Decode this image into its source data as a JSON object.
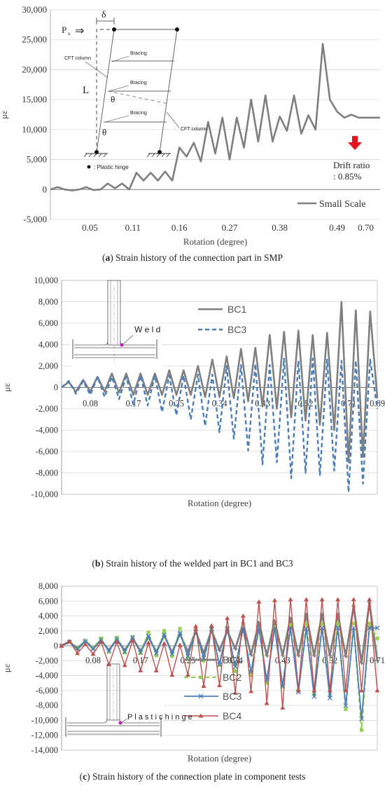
{
  "chart_data": [
    {
      "type": "line",
      "caption_label": "a",
      "caption": "Strain history of the connection part in SMP",
      "xlabel": "Rotation (degree)",
      "ylabel": "με",
      "ylim": [
        -5000,
        30000
      ],
      "yticks": [
        -5000,
        0,
        5000,
        10000,
        15000,
        20000,
        25000,
        30000
      ],
      "ytick_labels": [
        "-5,000",
        "0",
        "5,000",
        "10,000",
        "15,000",
        "20,000",
        "25,000",
        "30,000"
      ],
      "xlim": [
        0,
        46
      ],
      "xtick_labels": [
        "0.05",
        "0.11",
        "0.16",
        "0.27",
        "0.38",
        "0.49",
        "0.70"
      ],
      "xtick_positions": [
        5.5,
        11.5,
        18,
        25,
        32,
        40,
        44
      ],
      "grid": "horizontal",
      "legend_position": "bottom-right",
      "series": [
        {
          "name": "Small Scale",
          "color": "#7f7f7f",
          "style": "solid",
          "x": [
            0,
            1,
            2,
            3,
            4,
            5,
            6,
            7,
            8,
            9,
            10,
            11,
            12,
            13,
            14,
            15,
            16,
            17,
            18,
            19,
            20,
            21,
            22,
            23,
            24,
            25,
            26,
            27,
            28,
            29,
            30,
            31,
            32,
            33,
            34,
            35,
            36,
            37,
            38,
            39,
            40,
            41,
            42,
            43,
            44,
            45,
            46
          ],
          "values": [
            0,
            400,
            0,
            -150,
            0,
            400,
            -100,
            0,
            1000,
            200,
            1000,
            0,
            2800,
            1500,
            2800,
            1500,
            3000,
            1500,
            7000,
            5500,
            7800,
            4700,
            11300,
            6000,
            12000,
            5000,
            12000,
            7000,
            15000,
            8000,
            15700,
            8000,
            12200,
            9800,
            15700,
            9300,
            12400,
            10000,
            24300,
            15000,
            13000,
            12000,
            12500,
            12000,
            12000,
            12000,
            12000
          ]
        }
      ],
      "annotation": {
        "lines": [
          "Drift ratio",
          ": 0.85%"
        ],
        "arrow_color": "#e8121c"
      },
      "diagram": {
        "load": "P",
        "load_subscript": "u",
        "arrow": "⇒",
        "delta": "δ",
        "length": "L",
        "theta": "θ",
        "labels": [
          "Bracing",
          "Bracing",
          "Bracing",
          "CFT column",
          "CFT column"
        ],
        "hinge_legend": ": Plastic hinge"
      }
    },
    {
      "type": "line",
      "caption_label": "b",
      "caption": "Strain history of the welded part in BC1 and BC3",
      "xlabel": "Rotation (degree)",
      "ylabel": "με",
      "ylim": [
        -10000,
        10000
      ],
      "yticks": [
        -10000,
        -8000,
        -6000,
        -4000,
        -2000,
        0,
        2000,
        4000,
        6000,
        8000,
        10000
      ],
      "ytick_labels": [
        "-10,000",
        "-8,000",
        "-6,000",
        "-4,000",
        "-2,000",
        "0",
        "2,000",
        "4,000",
        "6,000",
        "8,000",
        "10,000"
      ],
      "xlim": [
        0,
        22
      ],
      "xtick_labels": [
        "0.08",
        "0.17",
        "0.25",
        "0.34",
        "0.43",
        "0.52",
        "0.71",
        "0.89"
      ],
      "xtick_positions": [
        2,
        5,
        8,
        11,
        14,
        17,
        20,
        22
      ],
      "grid": "horizontal",
      "legend_position": "top",
      "weld_label": "W e l d",
      "series": [
        {
          "name": "BC1",
          "color": "#7f7f7f",
          "style": "solid",
          "x": [
            0,
            0.5,
            1,
            1.5,
            2,
            2.5,
            3,
            3.5,
            4,
            4.5,
            5,
            5.5,
            6,
            6.5,
            7,
            7.5,
            8,
            8.5,
            9,
            9.5,
            10,
            10.5,
            11,
            11.5,
            12,
            12.5,
            13,
            13.5,
            14,
            14.5,
            15,
            15.5,
            16,
            16.5,
            17,
            17.5,
            18,
            18.5,
            19,
            19.5,
            20,
            20.5,
            21,
            21.5,
            22
          ],
          "values": [
            0,
            500,
            -400,
            700,
            -400,
            1000,
            -400,
            1300,
            -500,
            1300,
            -700,
            1300,
            -700,
            1300,
            -700,
            1600,
            -700,
            1600,
            -700,
            2000,
            -900,
            2600,
            -900,
            2900,
            -1000,
            3600,
            -1300,
            3700,
            -1800,
            4900,
            -2000,
            5200,
            -2800,
            5300,
            -3100,
            4900,
            -3500,
            5100,
            -4000,
            8000,
            -7000,
            7200,
            -6500,
            7100,
            -1000
          ]
        },
        {
          "name": "BC3",
          "color": "#4a7ebb",
          "style": "dashed",
          "x": [
            0,
            0.5,
            1,
            1.5,
            2,
            2.5,
            3,
            3.5,
            4,
            4.5,
            5,
            5.5,
            6,
            6.5,
            7,
            7.5,
            8,
            8.5,
            9,
            9.5,
            10,
            10.5,
            11,
            11.5,
            12,
            12.5,
            13,
            13.5,
            14,
            14.5,
            15,
            15.5,
            16,
            16.5,
            17,
            17.5,
            18,
            18.5,
            19,
            19.5,
            20,
            20.5,
            21,
            21.5,
            22
          ],
          "values": [
            0,
            600,
            -600,
            600,
            -700,
            1000,
            -900,
            1000,
            -1100,
            1000,
            -1600,
            1100,
            -1700,
            1100,
            -2300,
            1100,
            -2600,
            1100,
            -3000,
            1200,
            -3600,
            1200,
            -4200,
            2000,
            -4800,
            2100,
            -5900,
            2200,
            -7200,
            2100,
            -7000,
            2700,
            -8500,
            2500,
            -8000,
            2700,
            -8200,
            2600,
            -7800,
            2500,
            -9800,
            2500,
            -9000,
            2600,
            -2000
          ]
        }
      ]
    },
    {
      "type": "line",
      "caption_label": "c",
      "caption": "Strain history of the connection plate in component tests",
      "xlabel": "Rotation (degree)",
      "ylabel": "με",
      "ylim": [
        -14000,
        8000
      ],
      "yticks": [
        -14000,
        -12000,
        -10000,
        -8000,
        -6000,
        -4000,
        -2000,
        0,
        2000,
        4000,
        6000,
        8000
      ],
      "ytick_labels": [
        "-14,000",
        "-12,000",
        "-10,000",
        "-8,000",
        "-6,000",
        "-4,000",
        "-2,000",
        "0",
        "2,000",
        "4,000",
        "6,000",
        "8,000"
      ],
      "xlim": [
        0,
        20
      ],
      "xtick_labels": [
        "0.08",
        "0.17",
        "0.25",
        "0.34",
        "0.43",
        "0.52",
        "0.71"
      ],
      "xtick_positions": [
        2,
        5,
        8,
        11,
        14,
        17,
        20
      ],
      "grid": "horizontal",
      "legend_position": "bottom-center",
      "hinge_label": "P l a s t i c h i n g e",
      "series": [
        {
          "name": "BC1",
          "color": "#7f7f7f",
          "style": "solid",
          "marker": "asterisk",
          "x": [
            0,
            0.5,
            1,
            1.5,
            2,
            2.5,
            3,
            3.5,
            4,
            4.5,
            5,
            5.5,
            6,
            6.5,
            7,
            7.5,
            8,
            8.5,
            9,
            9.5,
            10,
            10.5,
            11,
            11.5,
            12,
            12.5,
            13,
            13.5,
            14,
            14.5,
            15,
            15.5,
            16,
            16.5,
            17,
            17.5,
            18,
            18.5,
            19,
            19.5,
            20
          ],
          "values": [
            0,
            600,
            -500,
            700,
            -400,
            800,
            -600,
            900,
            -600,
            1000,
            -700,
            1200,
            -800,
            1400,
            -900,
            1600,
            -800,
            2000,
            -1000,
            2100,
            -600,
            2000,
            -400,
            3000,
            -1200,
            3100,
            -1300,
            3300,
            -1300,
            3700,
            -1300,
            4200,
            -1300,
            4200,
            -1300,
            4200,
            -1400,
            5300,
            -2300,
            5800,
            -2000
          ]
        },
        {
          "name": "BC2",
          "color": "#92d050",
          "style": "dashed",
          "marker": "square",
          "x": [
            0,
            0.5,
            1,
            1.5,
            2,
            2.5,
            3,
            3.5,
            4,
            4.5,
            5,
            5.5,
            6,
            6.5,
            7,
            7.5,
            8,
            8.5,
            9,
            9.5,
            10,
            10.5,
            11,
            11.5,
            12,
            12.5,
            13,
            13.5,
            14,
            14.5,
            15,
            15.5,
            16,
            16.5,
            17,
            17.5,
            18,
            18.5,
            19,
            19.5,
            20
          ],
          "values": [
            0,
            500,
            -200,
            600,
            -300,
            1000,
            -800,
            1100,
            -900,
            1200,
            -1000,
            1800,
            -1300,
            2000,
            -1400,
            2300,
            -1600,
            2200,
            -2000,
            2300,
            -2600,
            2400,
            -3400,
            2500,
            -4000,
            2300,
            -5000,
            2500,
            -5500,
            2800,
            -6000,
            3000,
            -6500,
            2900,
            -6600,
            3000,
            -8500,
            3000,
            -11300,
            3000,
            1000
          ]
        },
        {
          "name": "BC3",
          "color": "#4a7ebb",
          "style": "solid",
          "marker": "x",
          "x": [
            0,
            0.5,
            1,
            1.5,
            2,
            2.5,
            3,
            3.5,
            4,
            4.5,
            5,
            5.5,
            6,
            6.5,
            7,
            7.5,
            8,
            8.5,
            9,
            9.5,
            10,
            10.5,
            11,
            11.5,
            12,
            12.5,
            13,
            13.5,
            14,
            14.5,
            15,
            15.5,
            16,
            16.5,
            17,
            17.5,
            18,
            18.5,
            19,
            19.5,
            20
          ],
          "values": [
            0,
            500,
            -300,
            600,
            -400,
            800,
            -700,
            900,
            -800,
            1100,
            -900,
            1300,
            -1000,
            1500,
            -1100,
            1700,
            -1400,
            1900,
            -1600,
            2200,
            -2500,
            2300,
            -2800,
            2300,
            -3500,
            2400,
            -4600,
            2400,
            -5400,
            2400,
            -6200,
            2300,
            -6800,
            2400,
            -7000,
            2400,
            -8000,
            2400,
            -9800,
            2400,
            2400
          ]
        },
        {
          "name": "BC4",
          "color": "#c0504d",
          "style": "solid",
          "marker": "triangle",
          "x": [
            0,
            0.5,
            1,
            1.5,
            2,
            2.5,
            3,
            3.5,
            4,
            4.5,
            5,
            5.5,
            6,
            6.5,
            7,
            7.5,
            8,
            8.5,
            9,
            9.5,
            10,
            10.5,
            11,
            11.5,
            12,
            12.5,
            13,
            13.5,
            14,
            14.5,
            15,
            15.5,
            16,
            16.5,
            17,
            17.5,
            18,
            18.5,
            19,
            19.5,
            20
          ],
          "values": [
            0,
            600,
            -1000,
            200,
            -1100,
            500,
            -2500,
            500,
            -2600,
            700,
            -3300,
            400,
            -3300,
            300,
            -3900,
            100,
            -3900,
            2600,
            -5400,
            2700,
            -5300,
            3700,
            -6300,
            4000,
            -6100,
            5900,
            -7700,
            6100,
            -8300,
            6200,
            -6000,
            6200,
            -6000,
            6200,
            -6000,
            6200,
            -6000,
            6200,
            -6000,
            6200,
            -6000
          ]
        }
      ]
    }
  ]
}
